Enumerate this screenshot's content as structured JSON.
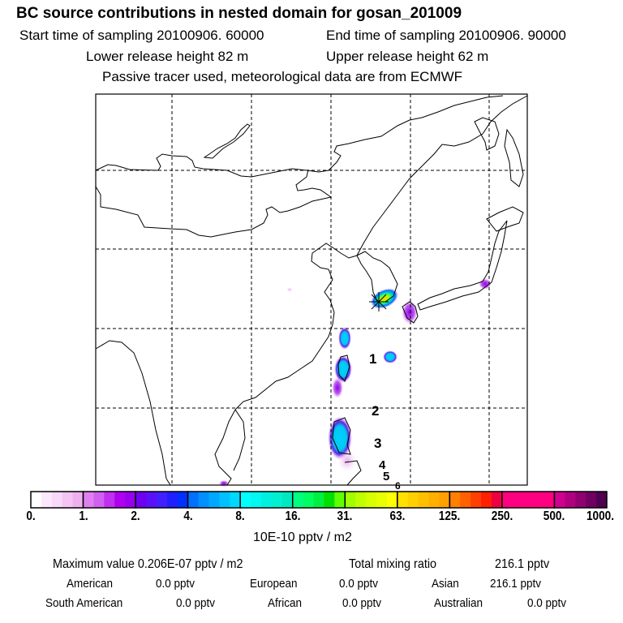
{
  "header": {
    "title": "BC  source contributions in nested domain for gosan_201009",
    "start_time": "Start time of sampling 20100906. 60000",
    "end_time": "End time of sampling 20100906. 90000",
    "lower_height": "Lower release height   82 m",
    "upper_height": "Upper release height   62 m",
    "note": "Passive tracer used, meteorological data are from ECMWF"
  },
  "map": {
    "release_marker": "star-marker",
    "labels": [
      "1",
      "2",
      "3",
      "4",
      "5",
      "6"
    ]
  },
  "chart_data": {
    "type": "heatmap",
    "title": "BC  source contributions in nested domain for gosan_201009",
    "colorbar": {
      "ticks": [
        "0.",
        "1.",
        "2.",
        "4.",
        "8.",
        "16.",
        "31.",
        "63.",
        "125.",
        "250.",
        "500.",
        "1000."
      ],
      "unit": "10E-10 pptv / m2",
      "colors": [
        [
          "#ffffff",
          "#fce8fc",
          "#f8d8f8",
          "#f4c4f4",
          "#f0b0f0"
        ],
        [
          "#e080f0",
          "#d060f0",
          "#c030f0",
          "#b000f0",
          "#9a00f0"
        ],
        [
          "#7000f0",
          "#5a10f8",
          "#4020ff",
          "#2020ff",
          "#0030ff"
        ],
        [
          "#0070ff",
          "#0090ff",
          "#00a8ff",
          "#00c0ff",
          "#00d8ff"
        ],
        [
          "#00ffff",
          "#00f8f0",
          "#00f0e0",
          "#00f0d0",
          "#00e8c0"
        ],
        [
          "#00ff80",
          "#00ff60",
          "#00f040",
          "#00e000",
          "#60ff00"
        ],
        [
          "#a0ff00",
          "#c0ff00",
          "#d8ff00",
          "#e8ff00",
          "#ffff00"
        ],
        [
          "#ffe000",
          "#ffd000",
          "#ffc000",
          "#ffb000",
          "#ffa000"
        ],
        [
          "#ff8000",
          "#ff6000",
          "#ff4000",
          "#ff2000",
          "#f00040"
        ],
        [
          "#ff0080",
          "#ff0080",
          "#ff0080",
          "#ff0080",
          "#ff0080"
        ],
        [
          "#d00090",
          "#b00080",
          "#900070",
          "#700060",
          "#500050"
        ]
      ]
    }
  },
  "stats": {
    "max_label": "Maximum value  0.206E-07 pptv / m2",
    "total_label": "Total mixing ratio",
    "total_value": "216.1 pptv",
    "american_label": "American",
    "american_value": "0.0 pptv",
    "european_label": "European",
    "european_value": "0.0 pptv",
    "asian_label": "Asian",
    "asian_value": "216.1 pptv",
    "south_american_label": "South American",
    "south_american_value": "0.0 pptv",
    "african_label": "African",
    "african_value": "0.0 pptv",
    "australian_label": "Australian",
    "australian_value": "0.0 pptv"
  }
}
